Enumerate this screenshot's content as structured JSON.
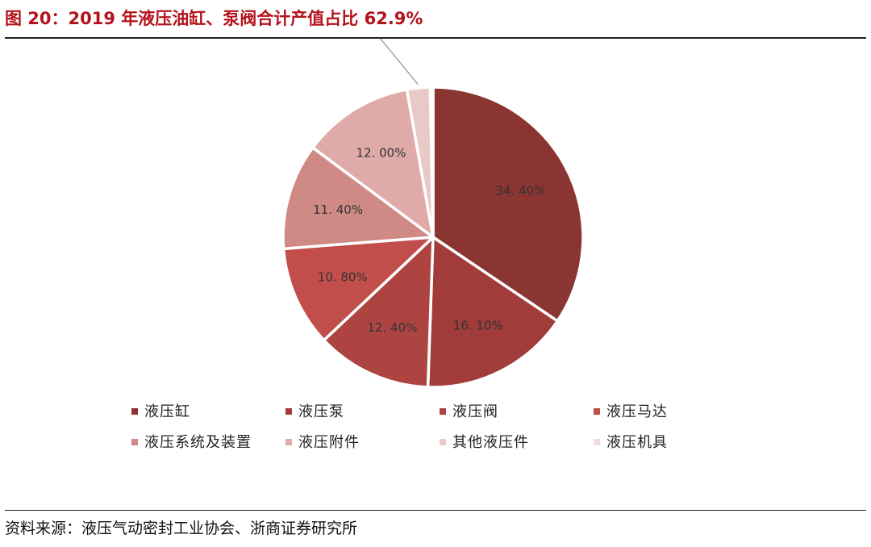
{
  "header": {
    "title": "图 20：2019 年液压油缸、泵阀合计产值占比 62.9%"
  },
  "footer": {
    "source": "资料来源：液压气动密封工业协会、浙商证券研究所"
  },
  "chart_data": {
    "type": "pie",
    "title": "",
    "legend_position": "bottom",
    "start_angle": "12 o'clock",
    "direction": "clockwise",
    "slices": [
      {
        "name": "液压缸",
        "value": 34.4,
        "label": "34. 40%",
        "color": "#8b3533"
      },
      {
        "name": "液压泵",
        "value": 16.1,
        "label": "16. 10%",
        "color": "#a13c3a"
      },
      {
        "name": "液压阀",
        "value": 12.4,
        "label": "12. 40%",
        "color": "#ae4442"
      },
      {
        "name": "液压马达",
        "value": 10.8,
        "label": "10. 80%",
        "color": "#c24e4c"
      },
      {
        "name": "液压系统及装置",
        "value": 11.4,
        "label": "11. 40%",
        "color": "#d08a86"
      },
      {
        "name": "液压附件",
        "value": 12.0,
        "label": "12. 00%",
        "color": "#dfaaa8"
      },
      {
        "name": "其他液压件",
        "value": 2.5,
        "label": "2. 50%",
        "color": "#e9c9c8"
      },
      {
        "name": "液压机具",
        "value": 0.3,
        "label": "0. 30%",
        "color": "#f1dcdb"
      }
    ]
  }
}
